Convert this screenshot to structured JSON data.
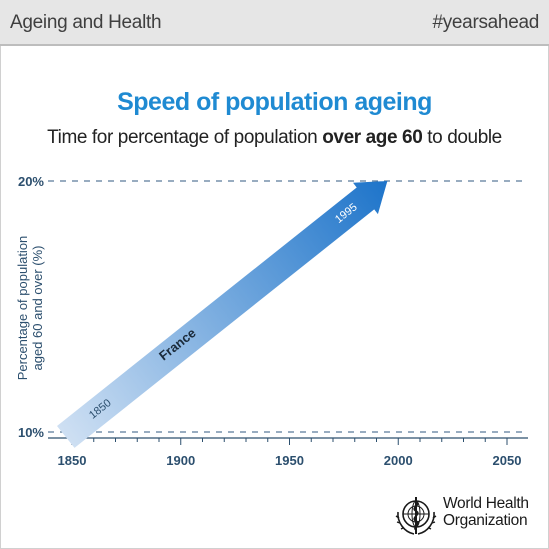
{
  "header": {
    "left_text": "Ageing and Health",
    "right_text": "#yearsahead"
  },
  "title": "Speed of population ageing",
  "subtitle": {
    "pre": "Time for percentage of population ",
    "bold": "over age 60",
    "post": " to double"
  },
  "chart_data": {
    "type": "line",
    "ylabel_line1": "Percentage of population",
    "ylabel_line2": "aged 60 and over (%)",
    "xlim": [
      1845,
      2058
    ],
    "ylim": [
      10,
      20
    ],
    "x_ticks": [
      1850,
      1900,
      1950,
      2000,
      2050
    ],
    "x_tick_labels": [
      "1850",
      "1900",
      "1950",
      "2000",
      "2050"
    ],
    "y_ticks": [
      10,
      20
    ],
    "y_tick_labels": [
      "10%",
      "20%"
    ],
    "series": [
      {
        "name": "France",
        "x": [
          1850,
          1995
        ],
        "y": [
          10,
          20
        ],
        "start_label": "1850",
        "end_label": "1995"
      }
    ],
    "grid": "dashed horizontal lines at 10% and 20%",
    "colors": {
      "arrow_start": "#cfe0f3",
      "arrow_end": "#1a72c9",
      "axis": "#2c4f6e",
      "grid": "#5a7a9a"
    }
  },
  "footer": {
    "org_line1": "World Health",
    "org_line2": "Organization"
  },
  "icons": {
    "logo": "who-emblem-icon"
  }
}
